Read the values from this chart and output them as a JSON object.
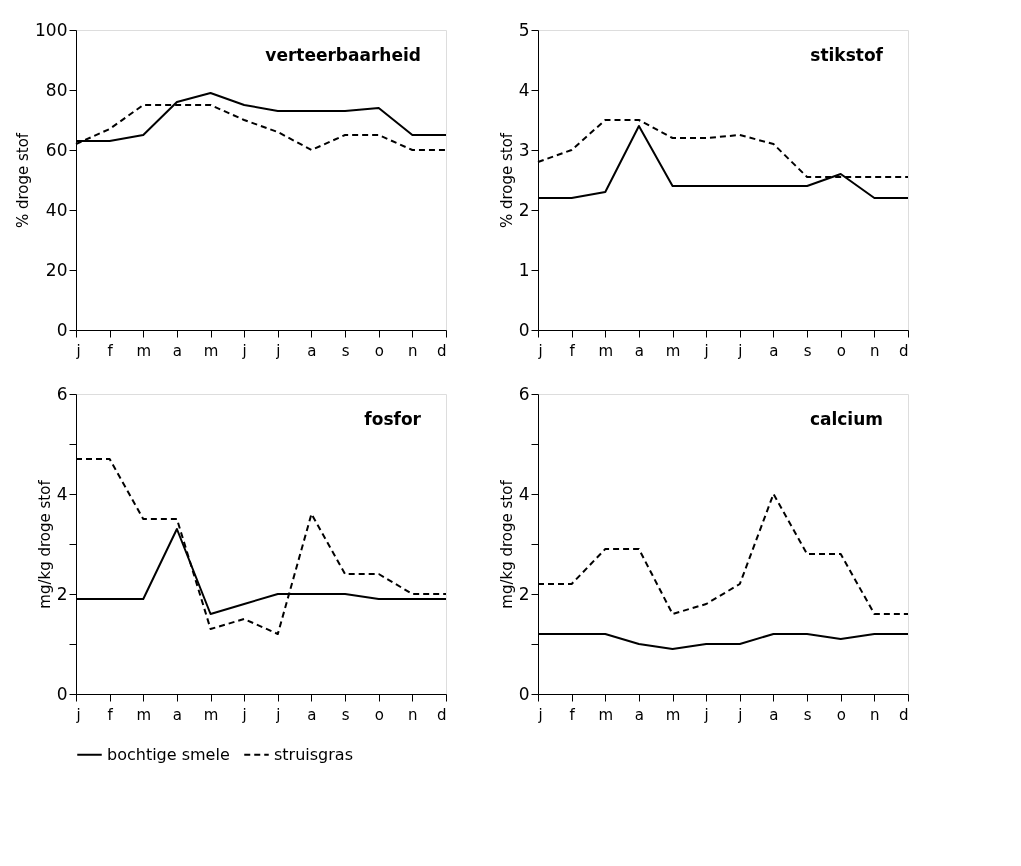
{
  "chart_data": [
    {
      "type": "line",
      "title": "verteerbaarheid",
      "ylabel": "% droge stof",
      "categories": [
        "j",
        "f",
        "m",
        "a",
        "m",
        "j",
        "j",
        "a",
        "s",
        "o",
        "n",
        "d"
      ],
      "ylim": [
        0,
        100
      ],
      "yticks": [
        0,
        20,
        40,
        60,
        80,
        100
      ],
      "grid": false,
      "legend": "bottom",
      "marker": "none",
      "series": [
        {
          "name": "bochtige smele",
          "color": "#000000",
          "line_style": "solid",
          "values": [
            63,
            63,
            65,
            76,
            79,
            75,
            73,
            73,
            73,
            74,
            65,
            65
          ]
        },
        {
          "name": "struisgras",
          "color": "#000000",
          "line_style": "dashed",
          "values": [
            62,
            67,
            75,
            75,
            75,
            70,
            66,
            60,
            65,
            65,
            60,
            60
          ]
        }
      ]
    },
    {
      "type": "line",
      "title": "stikstof",
      "ylabel": "% droge stof",
      "categories": [
        "j",
        "f",
        "m",
        "a",
        "m",
        "j",
        "j",
        "a",
        "s",
        "o",
        "n",
        "d"
      ],
      "ylim": [
        0,
        5
      ],
      "yticks": [
        0,
        1,
        2,
        3,
        4,
        5
      ],
      "grid": false,
      "legend": "bottom",
      "marker": "none",
      "series": [
        {
          "name": "bochtige smele",
          "color": "#000000",
          "line_style": "solid",
          "values": [
            2.2,
            2.2,
            2.3,
            3.4,
            2.4,
            2.4,
            2.4,
            2.4,
            2.4,
            2.6,
            2.2,
            2.2
          ]
        },
        {
          "name": "struisgras",
          "color": "#000000",
          "line_style": "dashed",
          "values": [
            2.8,
            3.0,
            3.5,
            3.5,
            3.2,
            3.2,
            3.25,
            3.1,
            2.55,
            2.55,
            2.55,
            2.55
          ]
        }
      ]
    },
    {
      "type": "line",
      "title": "fosfor",
      "ylabel": "mg/kg droge stof",
      "categories": [
        "j",
        "f",
        "m",
        "a",
        "m",
        "j",
        "j",
        "a",
        "s",
        "o",
        "n",
        "d"
      ],
      "ylim": [
        0,
        6
      ],
      "yticks": [
        0,
        {
          "value": 1,
          "label": null
        },
        2,
        {
          "value": 3,
          "label": null
        },
        4,
        {
          "value": 5,
          "label": null
        },
        6
      ],
      "grid": false,
      "legend": "bottom",
      "marker": "none",
      "series": [
        {
          "name": "bochtige smele",
          "color": "#000000",
          "line_style": "solid",
          "values": [
            1.9,
            1.9,
            1.9,
            3.3,
            1.6,
            1.8,
            2.0,
            2.0,
            2.0,
            1.9,
            1.9,
            1.9
          ]
        },
        {
          "name": "struisgras",
          "color": "#000000",
          "line_style": "dashed",
          "values": [
            4.7,
            4.7,
            3.5,
            3.5,
            1.3,
            1.5,
            1.2,
            3.6,
            2.4,
            2.4,
            2.0,
            2.0
          ]
        }
      ]
    },
    {
      "type": "line",
      "title": "calcium",
      "ylabel": "mg/kg droge stof",
      "categories": [
        "j",
        "f",
        "m",
        "a",
        "m",
        "j",
        "j",
        "a",
        "s",
        "o",
        "n",
        "d"
      ],
      "ylim": [
        0,
        6
      ],
      "yticks": [
        0,
        {
          "value": 1,
          "label": null
        },
        2,
        {
          "value": 3,
          "label": null
        },
        4,
        {
          "value": 5,
          "label": null
        },
        6
      ],
      "grid": false,
      "legend": "bottom",
      "marker": "none",
      "series": [
        {
          "name": "bochtige smele",
          "color": "#000000",
          "line_style": "solid",
          "values": [
            1.2,
            1.2,
            1.2,
            1.0,
            0.9,
            1.0,
            1.0,
            1.2,
            1.2,
            1.1,
            1.2,
            1.2
          ]
        },
        {
          "name": "struisgras",
          "color": "#000000",
          "line_style": "dashed",
          "values": [
            2.2,
            2.2,
            2.9,
            2.9,
            1.6,
            1.8,
            2.2,
            4.0,
            2.8,
            2.8,
            1.6,
            1.6
          ]
        }
      ]
    }
  ]
}
